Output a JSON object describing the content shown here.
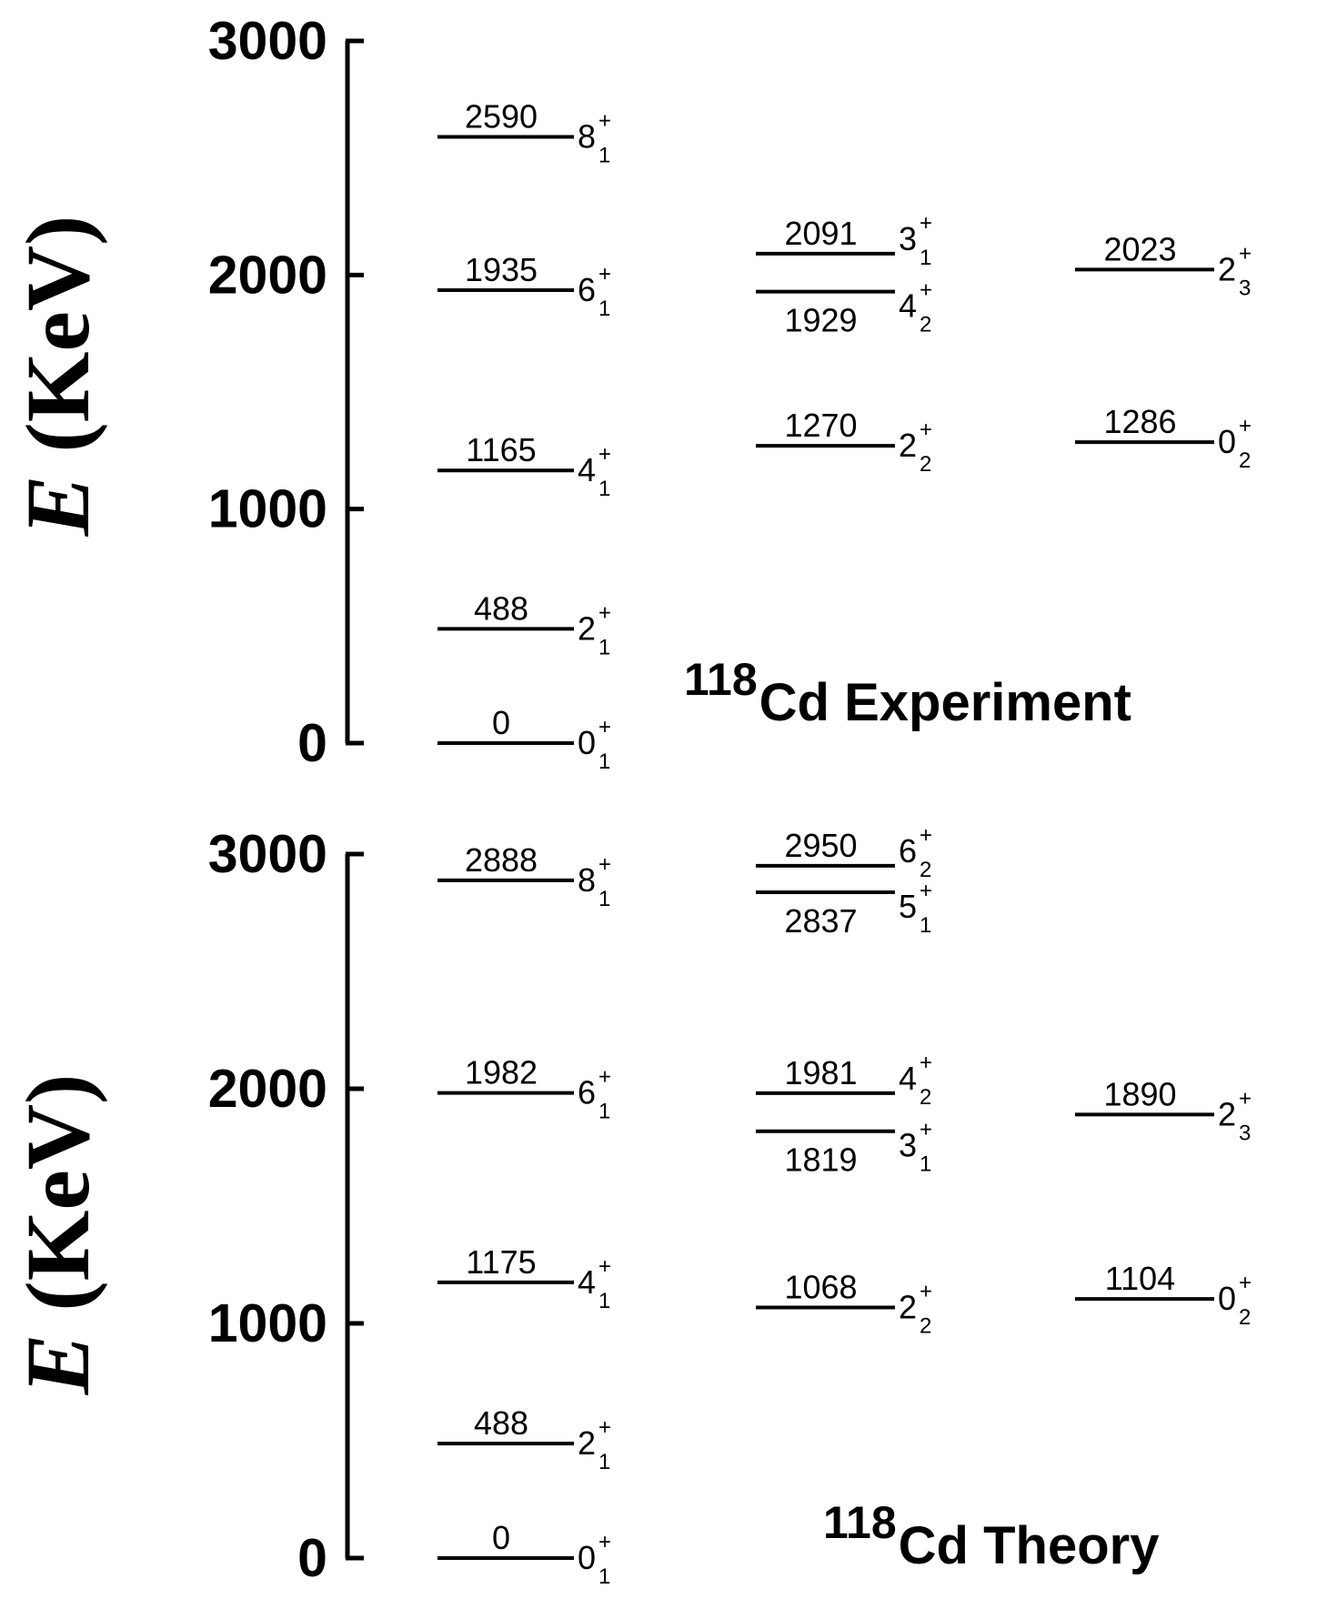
{
  "chart_data": [
    {
      "type": "level",
      "title_mass": "118",
      "title": "Cd Experiment",
      "ylabel_symbol": "E",
      "ylabel": "(KeV)",
      "ylim": [
        0,
        3000
      ],
      "yticks": [
        0,
        1000,
        2000,
        3000
      ],
      "columns": [
        {
          "levels": [
            {
              "energy": 0,
              "spin": "0",
              "parity": "+",
              "index": "1"
            },
            {
              "energy": 488,
              "spin": "2",
              "parity": "+",
              "index": "1"
            },
            {
              "energy": 1165,
              "spin": "4",
              "parity": "+",
              "index": "1"
            },
            {
              "energy": 1935,
              "spin": "6",
              "parity": "+",
              "index": "1"
            },
            {
              "energy": 2590,
              "spin": "8",
              "parity": "+",
              "index": "1"
            }
          ]
        },
        {
          "levels": [
            {
              "energy": 1270,
              "spin": "2",
              "parity": "+",
              "index": "2"
            },
            {
              "energy": 1929,
              "spin": "4",
              "parity": "+",
              "index": "2"
            },
            {
              "energy": 2091,
              "spin": "3",
              "parity": "+",
              "index": "1"
            }
          ]
        },
        {
          "levels": [
            {
              "energy": 1286,
              "spin": "0",
              "parity": "+",
              "index": "2"
            },
            {
              "energy": 2023,
              "spin": "2",
              "parity": "+",
              "index": "3"
            }
          ]
        }
      ]
    },
    {
      "type": "level",
      "title_mass": "118",
      "title": "Cd Theory",
      "ylabel_symbol": "E",
      "ylabel": "(KeV)",
      "ylim": [
        0,
        3000
      ],
      "yticks": [
        0,
        1000,
        2000,
        3000
      ],
      "columns": [
        {
          "levels": [
            {
              "energy": 0,
              "spin": "0",
              "parity": "+",
              "index": "1"
            },
            {
              "energy": 488,
              "spin": "2",
              "parity": "+",
              "index": "1"
            },
            {
              "energy": 1175,
              "spin": "4",
              "parity": "+",
              "index": "1"
            },
            {
              "energy": 1982,
              "spin": "6",
              "parity": "+",
              "index": "1"
            },
            {
              "energy": 2888,
              "spin": "8",
              "parity": "+",
              "index": "1"
            }
          ]
        },
        {
          "levels": [
            {
              "energy": 1068,
              "spin": "2",
              "parity": "+",
              "index": "2"
            },
            {
              "energy": 1819,
              "spin": "3",
              "parity": "+",
              "index": "1"
            },
            {
              "energy": 1981,
              "spin": "4",
              "parity": "+",
              "index": "2"
            },
            {
              "energy": 2837,
              "spin": "5",
              "parity": "+",
              "index": "1"
            },
            {
              "energy": 2950,
              "spin": "6",
              "parity": "+",
              "index": "2"
            }
          ]
        },
        {
          "levels": [
            {
              "energy": 1104,
              "spin": "0",
              "parity": "+",
              "index": "2"
            },
            {
              "energy": 1890,
              "spin": "2",
              "parity": "+",
              "index": "3"
            }
          ]
        }
      ]
    }
  ]
}
